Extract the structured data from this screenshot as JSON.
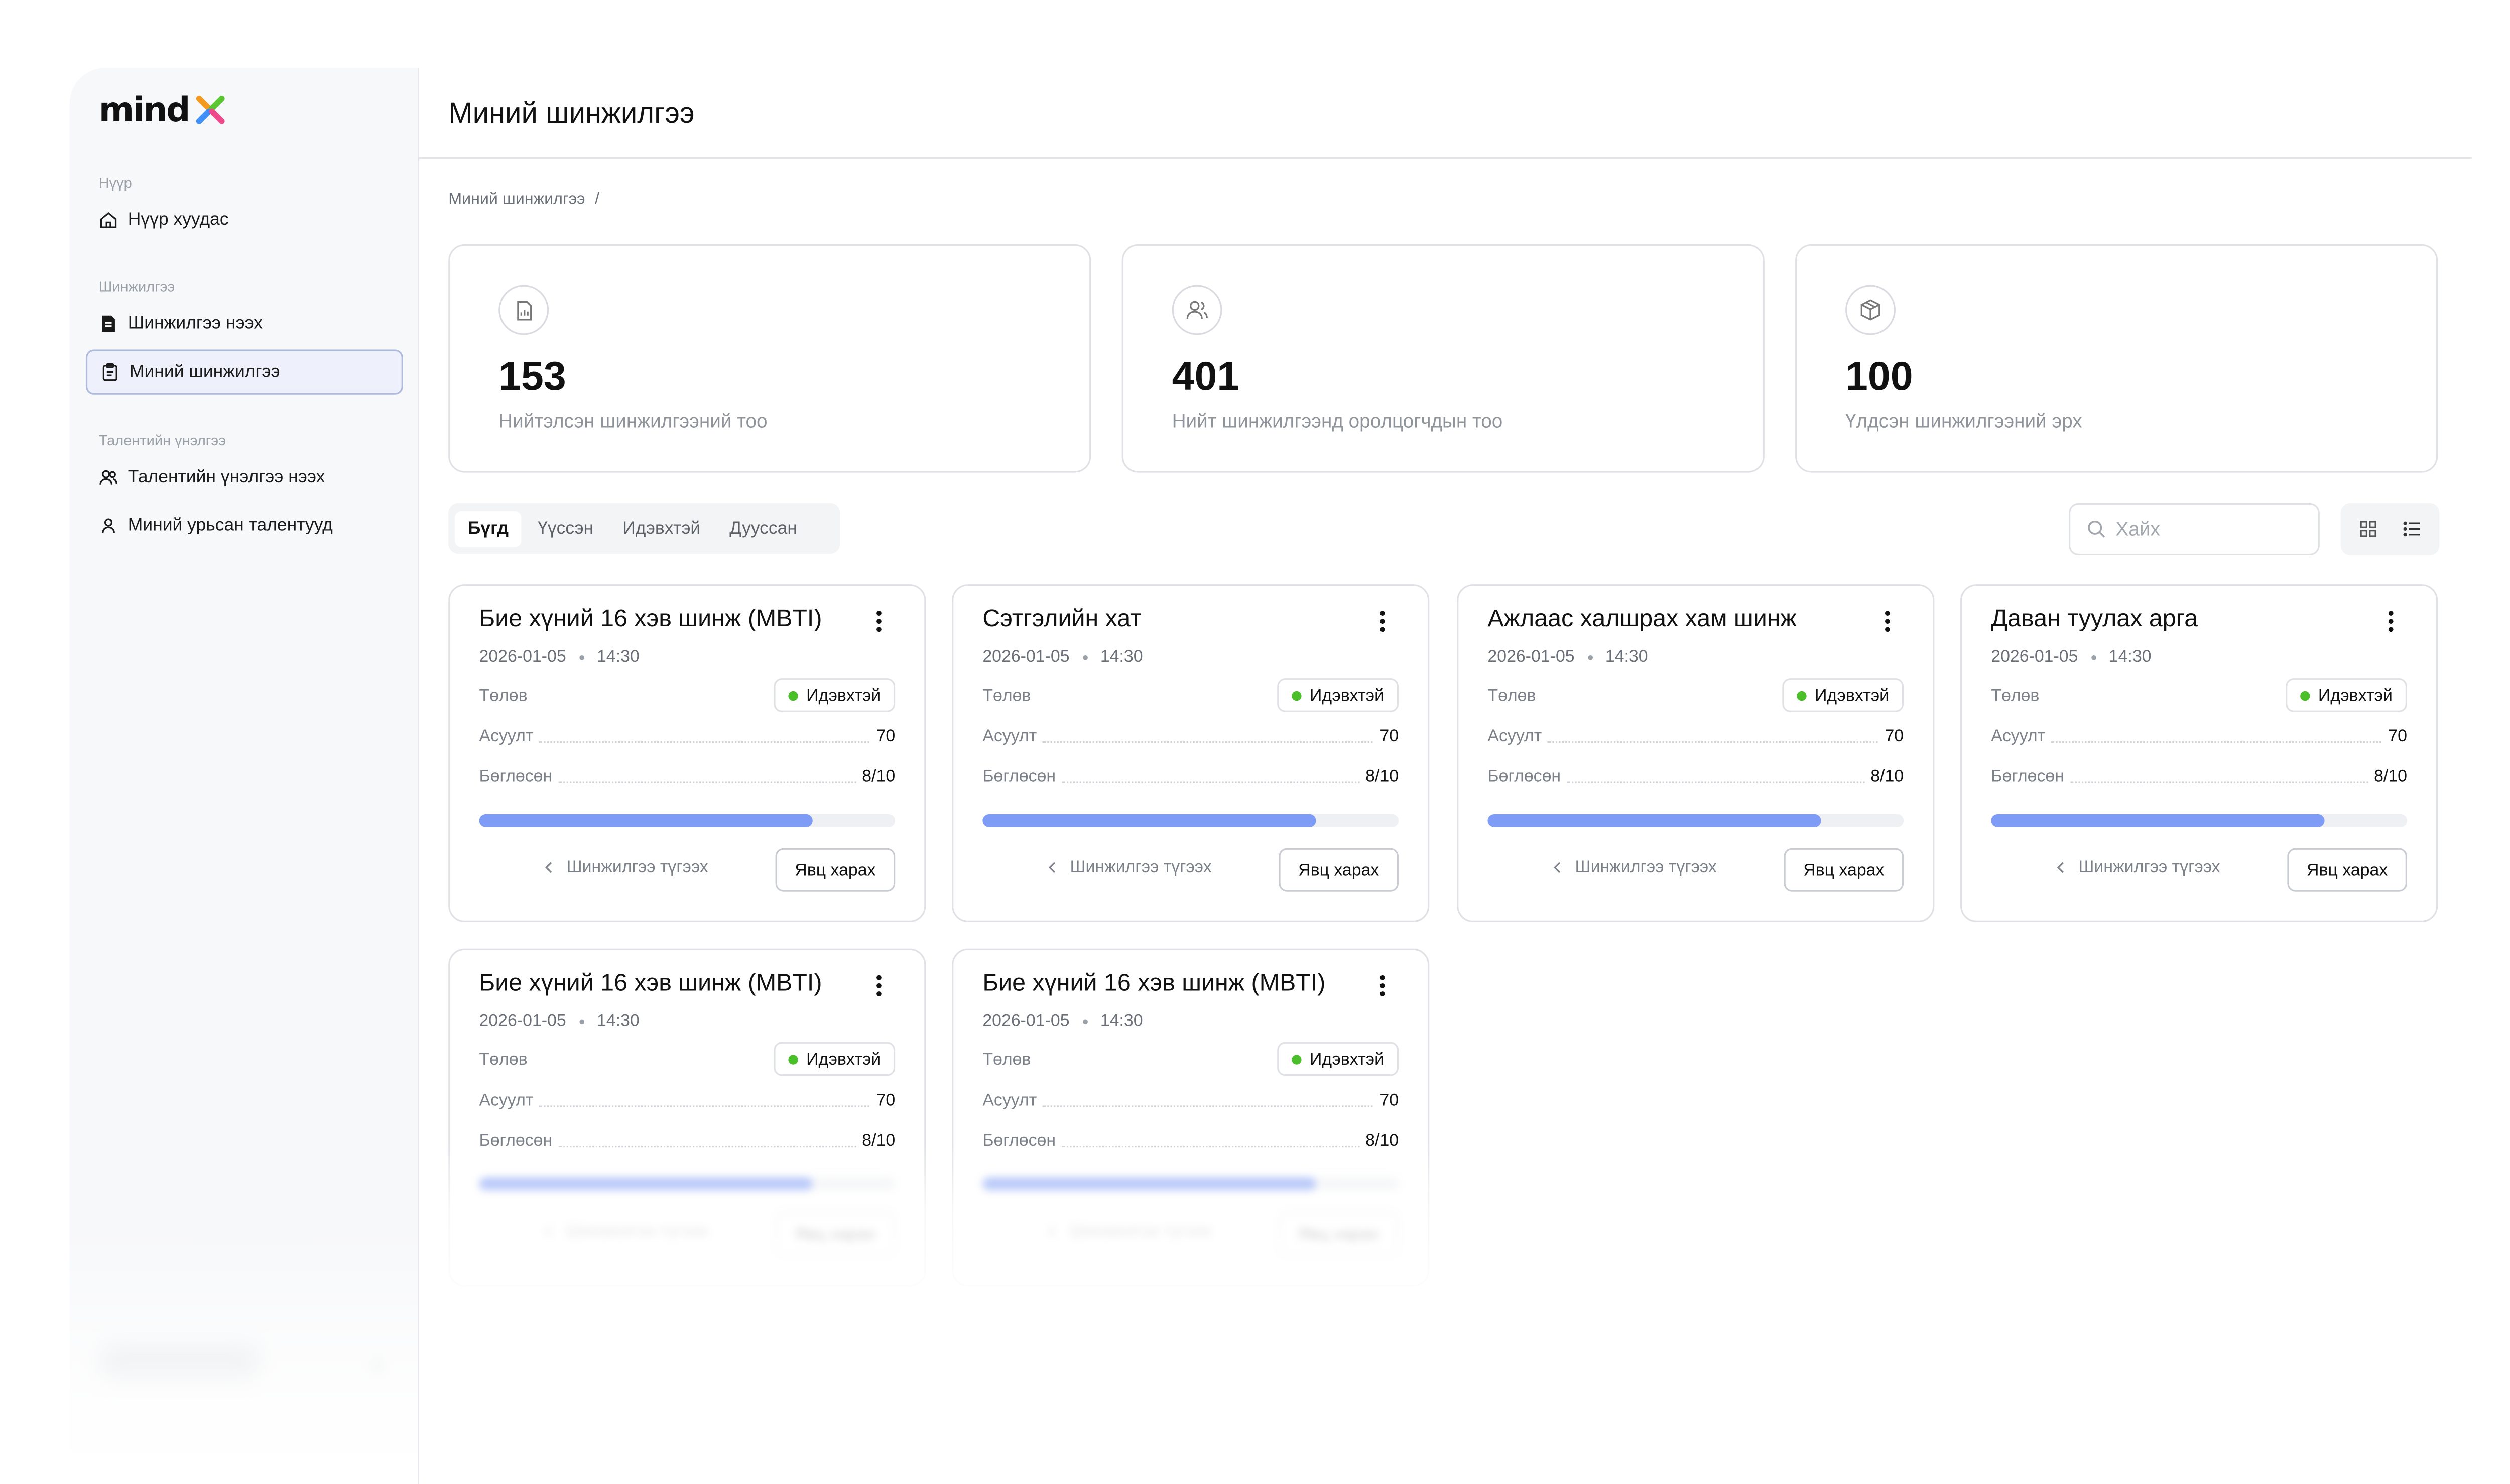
{
  "app": {
    "logo_text": "mind",
    "colors": {
      "accent": "#7e9cf5",
      "status_active": "#4bbf2a",
      "logo_orange": "#f39a1e",
      "logo_green": "#58c531",
      "logo_blue": "#3e8ef7",
      "logo_pink": "#ec4a8b"
    }
  },
  "sidebar": {
    "sections": [
      {
        "title": "Нүүр",
        "items": [
          {
            "label": "Нүүр хуудас",
            "icon": "home-icon"
          }
        ]
      },
      {
        "title": "Шинжилгээ",
        "items": [
          {
            "label": "Шинжилгээ нээх",
            "icon": "document-icon"
          },
          {
            "label": "Миний шинжилгээ",
            "icon": "clipboard-icon",
            "active": true
          }
        ]
      },
      {
        "title": "Талентийн үнэлгээ",
        "items": [
          {
            "label": "Талентийн үнэлгээ нээх",
            "icon": "users-icon"
          },
          {
            "label": "Миний урьсан талентууд",
            "icon": "user-icon"
          }
        ]
      }
    ]
  },
  "header": {
    "title": "Миний шинжилгээ"
  },
  "breadcrumb": {
    "current": "Миний шинжилгээ",
    "separator": "/"
  },
  "stats": [
    {
      "icon": "report-icon",
      "value": "153",
      "label": "Нийтэлсэн шинжилгээний тоо"
    },
    {
      "icon": "participants-icon",
      "value": "401",
      "label": "Нийт шинжилгээнд оролцогчдын тоо"
    },
    {
      "icon": "package-icon",
      "value": "100",
      "label": "Үлдсэн шинжилгээний эрх"
    }
  ],
  "tabs": [
    {
      "label": "Бүгд",
      "active": true
    },
    {
      "label": "Үүссэн"
    },
    {
      "label": "Идэвхтэй"
    },
    {
      "label": "Дууссан"
    }
  ],
  "search": {
    "placeholder": "Хайх"
  },
  "card_labels": {
    "status": "Төлөв",
    "questions": "Асуулт",
    "filled": "Бөглөсөн",
    "end_action": "Шинжилгээ түгээх",
    "view_action": "Явц харах"
  },
  "cards": [
    {
      "title": "Бие хүний 16 хэв шинж (MBTI)",
      "date": "2026-01-05",
      "time": "14:30",
      "status": "Идэвхтэй",
      "questions": "70",
      "filled": "8/10",
      "progress": 0.8
    },
    {
      "title": "Сэтгэлийн хат",
      "date": "2026-01-05",
      "time": "14:30",
      "status": "Идэвхтэй",
      "questions": "70",
      "filled": "8/10",
      "progress": 0.8
    },
    {
      "title": "Ажлаас халшрах хам шинж",
      "date": "2026-01-05",
      "time": "14:30",
      "status": "Идэвхтэй",
      "questions": "70",
      "filled": "8/10",
      "progress": 0.8
    },
    {
      "title": "Даван туулах арга",
      "date": "2026-01-05",
      "time": "14:30",
      "status": "Идэвхтэй",
      "questions": "70",
      "filled": "8/10",
      "progress": 0.8
    },
    {
      "title": "Бие хүний 16 хэв шинж (MBTI)",
      "date": "2026-01-05",
      "time": "14:30",
      "status": "Идэвхтэй",
      "questions": "70",
      "filled": "8/10",
      "progress": 0.8
    },
    {
      "title": "Бие хүний 16 хэв шинж (MBTI)",
      "date": "2026-01-05",
      "time": "14:30",
      "status": "Идэвхтэй",
      "questions": "70",
      "filled": "8/10",
      "progress": 0.8
    }
  ]
}
